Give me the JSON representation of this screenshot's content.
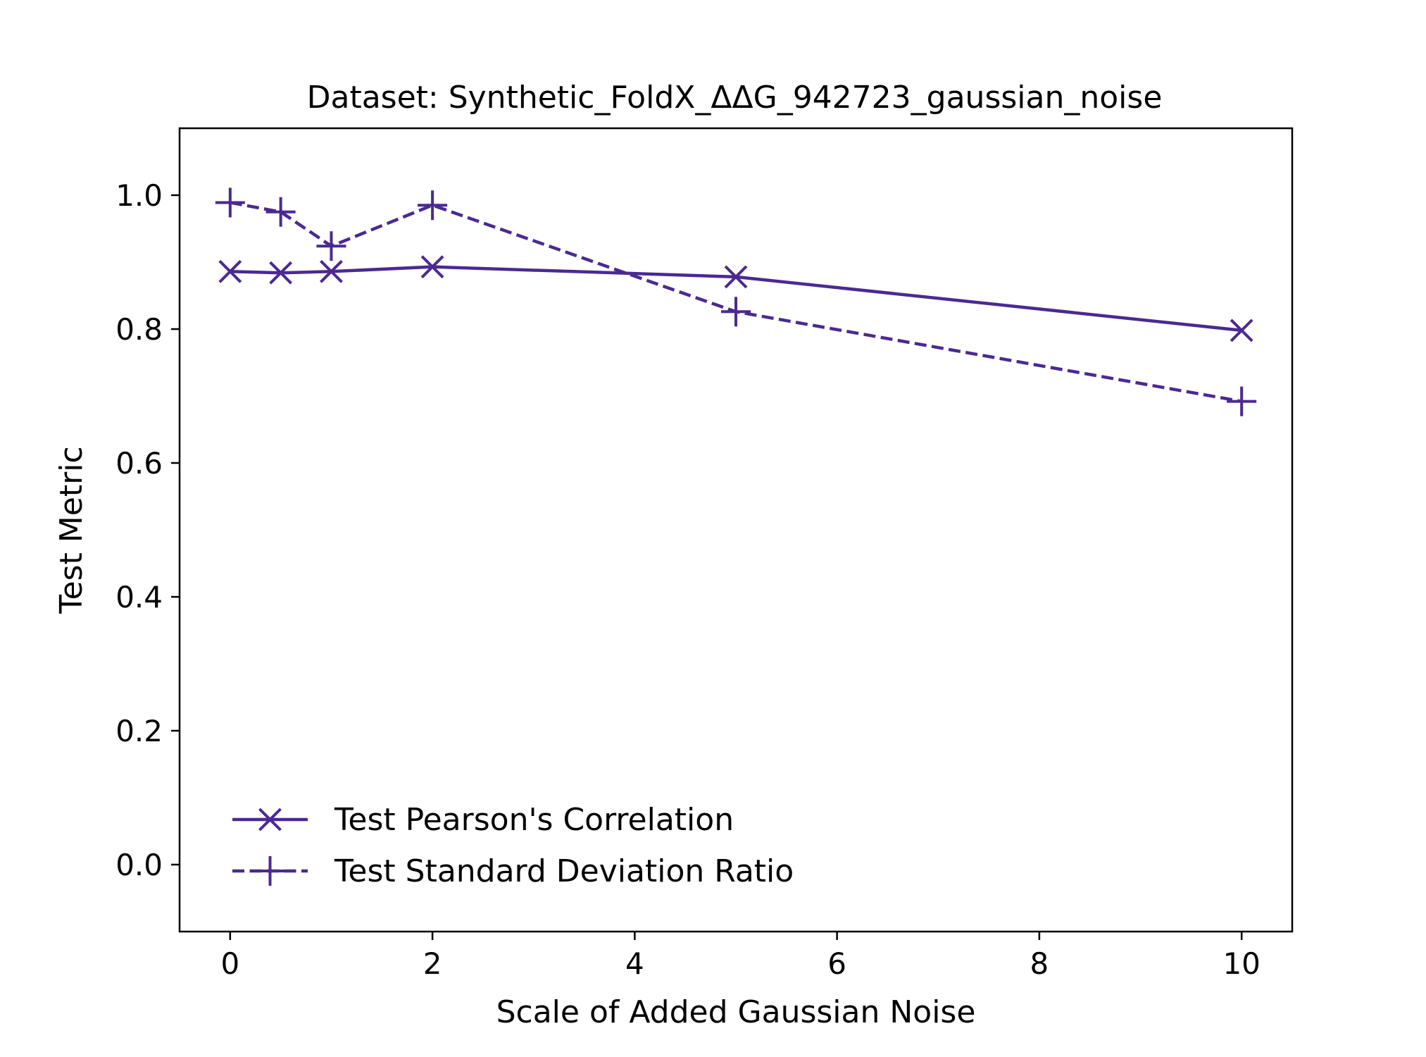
{
  "chart_data": {
    "type": "line",
    "title": "Dataset: Synthetic_FoldX_ΔΔG_942723_gaussian_noise",
    "xlabel": "Scale of Added Gaussian Noise",
    "ylabel": "Test Metric",
    "xlim": [
      -0.5,
      10.5
    ],
    "ylim": [
      -0.1,
      1.1
    ],
    "x_ticks": [
      0,
      2,
      4,
      6,
      8,
      10
    ],
    "x_tick_labels": [
      "0",
      "2",
      "4",
      "6",
      "8",
      "10"
    ],
    "y_ticks": [
      0.0,
      0.2,
      0.4,
      0.6,
      0.8,
      1.0
    ],
    "y_tick_labels": [
      "0.0",
      "0.2",
      "0.4",
      "0.6",
      "0.8",
      "1.0"
    ],
    "grid": false,
    "legend_position": "lower-left",
    "series": [
      {
        "name": "Test Pearson's Correlation",
        "x": [
          0,
          0.5,
          1,
          2,
          5,
          10
        ],
        "y": [
          0.886,
          0.884,
          0.886,
          0.893,
          0.878,
          0.798
        ],
        "color": "#4b2991",
        "line_style": "solid",
        "marker": "x"
      },
      {
        "name": "Test Standard Deviation Ratio",
        "x": [
          0,
          0.5,
          1,
          2,
          5,
          10
        ],
        "y": [
          0.989,
          0.975,
          0.924,
          0.985,
          0.826,
          0.692
        ],
        "color": "#4b2991",
        "line_style": "dashed",
        "marker": "+"
      }
    ]
  }
}
